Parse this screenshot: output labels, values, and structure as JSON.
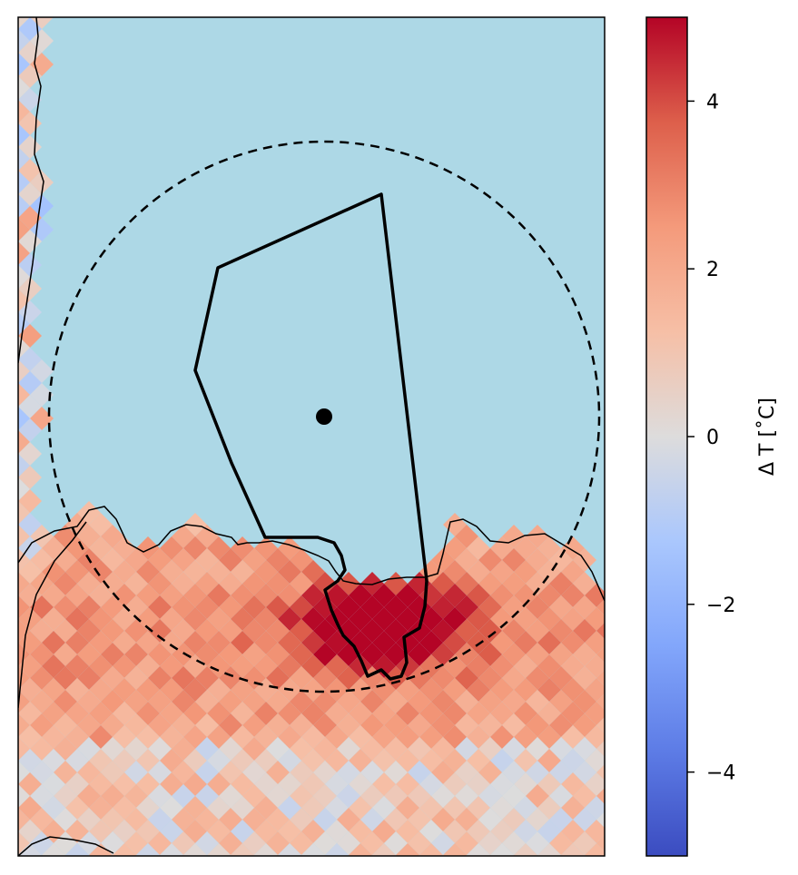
{
  "colorbar": {
    "label": "Δ T [˚C]",
    "min": -5,
    "max": 5,
    "colormap": "coolwarm",
    "ticks": [
      {
        "value": 4,
        "label": "4"
      },
      {
        "value": 2,
        "label": "2"
      },
      {
        "value": 0,
        "label": "0"
      },
      {
        "value": -2,
        "label": "−2"
      },
      {
        "value": -4,
        "label": "−4"
      }
    ]
  },
  "map": {
    "ocean_color": "#add8e6",
    "land_outline_color": "#000000",
    "marker_color": "#000000",
    "circle_style": "dashed"
  }
}
